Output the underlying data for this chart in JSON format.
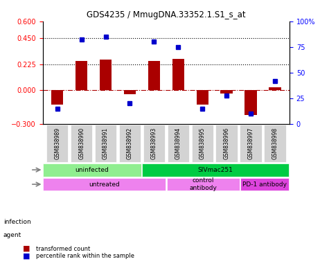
{
  "title": "GDS4235 / MmugDNA.33352.1.S1_s_at",
  "samples": [
    "GSM838989",
    "GSM838990",
    "GSM838991",
    "GSM838992",
    "GSM838993",
    "GSM838994",
    "GSM838995",
    "GSM838996",
    "GSM838997",
    "GSM838998"
  ],
  "transformed_counts": [
    -0.13,
    0.255,
    0.265,
    -0.04,
    0.255,
    0.27,
    -0.13,
    -0.03,
    -0.22,
    0.025
  ],
  "percentile_ranks": [
    15,
    82,
    85,
    20,
    80,
    75,
    15,
    28,
    10,
    42
  ],
  "ylim_left": [
    -0.3,
    0.6
  ],
  "ylim_right": [
    0,
    100
  ],
  "yticks_left": [
    -0.3,
    0,
    0.225,
    0.45,
    0.6
  ],
  "yticks_right": [
    0,
    25,
    50,
    75,
    100
  ],
  "hlines": [
    0.45,
    0.225
  ],
  "bar_color": "#aa0000",
  "dot_color": "#0000cc",
  "bar_width": 0.5,
  "infection_groups": [
    {
      "label": "uninfected",
      "start": 0,
      "end": 4,
      "color": "#90ee90"
    },
    {
      "label": "SIVmac251",
      "start": 4,
      "end": 10,
      "color": "#00cc44"
    }
  ],
  "agent_groups": [
    {
      "label": "untreated",
      "start": 0,
      "end": 5,
      "color": "#ee82ee"
    },
    {
      "label": "control\nantibody",
      "start": 5,
      "end": 8,
      "color": "#ee82ee"
    },
    {
      "label": "PD-1 antibody",
      "start": 8,
      "end": 10,
      "color": "#dd44dd"
    }
  ],
  "legend_items": [
    {
      "label": "transformed count",
      "color": "#aa0000"
    },
    {
      "label": "percentile rank within the sample",
      "color": "#0000cc"
    }
  ]
}
